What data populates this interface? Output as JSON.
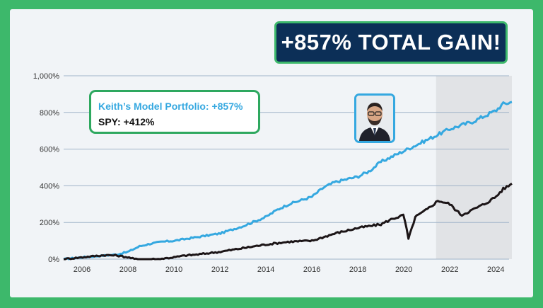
{
  "banner": {
    "text": "+857% TOTAL GAIN!"
  },
  "legend": {
    "portfolio_label": "Keith’s Model Portfolio: +857%",
    "spy_label": "SPY: +412%"
  },
  "colors": {
    "portfolio": "#35a8e0",
    "spy": "#1c1517",
    "shade": "#e1e3e6",
    "grid": "#9fb3c8"
  },
  "chart_data": {
    "type": "line",
    "xlim": [
      2005.2,
      2024.7
    ],
    "ylim": [
      0,
      1000
    ],
    "yticks": [
      "0%",
      "200%",
      "400%",
      "600%",
      "800%",
      "1,000%"
    ],
    "ytick_values": [
      0,
      200,
      400,
      600,
      800,
      1000
    ],
    "xticks": [
      "2006",
      "2008",
      "2010",
      "2012",
      "2014",
      "2016",
      "2018",
      "2020",
      "2022",
      "2024"
    ],
    "xtick_values": [
      2006,
      2008,
      2010,
      2012,
      2014,
      2016,
      2018,
      2020,
      2022,
      2024
    ],
    "shaded_region": [
      2021.4,
      2024.7
    ],
    "grid": true,
    "series": [
      {
        "name": "Keith’s Model Portfolio",
        "x": [
          2005.2,
          2006,
          2007,
          2007.5,
          2008,
          2008.5,
          2009,
          2009.5,
          2010,
          2011,
          2012,
          2013,
          2014,
          2014.5,
          2015,
          2016,
          2016.5,
          2017,
          2018,
          2018.5,
          2019,
          2020,
          2020.5,
          2021,
          2021.5,
          2022,
          2023,
          2024,
          2024.3,
          2024.7
        ],
        "y": [
          0,
          10,
          20,
          25,
          40,
          70,
          85,
          95,
          100,
          120,
          140,
          180,
          230,
          270,
          300,
          340,
          390,
          420,
          450,
          480,
          530,
          590,
          620,
          650,
          680,
          710,
          750,
          810,
          845,
          857
        ]
      },
      {
        "name": "SPY",
        "x": [
          2005.2,
          2006,
          2007,
          2007.5,
          2008,
          2008.3,
          2008.8,
          2009.3,
          2010,
          2010.5,
          2011,
          2012,
          2013,
          2014,
          2015,
          2016,
          2016.5,
          2017,
          2018,
          2019,
          2019.5,
          2020,
          2020.2,
          2020.5,
          2021,
          2021.5,
          2022,
          2022.5,
          2023,
          2023.5,
          2024,
          2024.3,
          2024.7
        ],
        "y": [
          0,
          10,
          22,
          20,
          10,
          0,
          0,
          0,
          10,
          20,
          25,
          40,
          60,
          80,
          95,
          100,
          120,
          140,
          170,
          190,
          220,
          240,
          110,
          230,
          270,
          320,
          300,
          240,
          270,
          300,
          340,
          380,
          412
        ]
      }
    ]
  }
}
